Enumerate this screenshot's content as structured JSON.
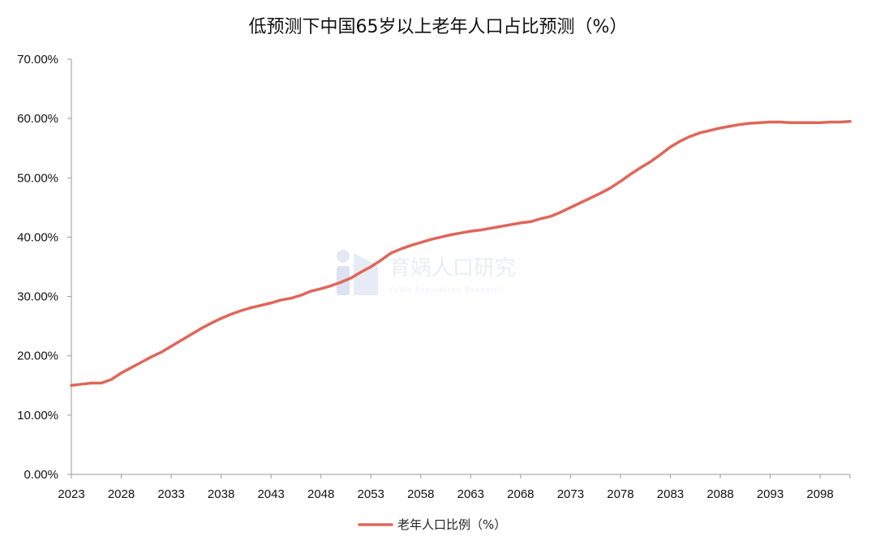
{
  "colors": {
    "series": "#e0665a",
    "axis": "#9a9a9a",
    "watermark": "#dde3ef"
  },
  "watermark": {
    "icon": "brand-logo-icon",
    "text": "育娲人口研究",
    "sub": "YuWa Population Research"
  },
  "chart_data": {
    "type": "line",
    "title": "低预测下中国65岁以上老年人口占比预测（%）",
    "xlabel": "",
    "ylabel": "",
    "xlim": [
      2023,
      2101
    ],
    "ylim": [
      0,
      70
    ],
    "y_ticks": [
      "0.00%",
      "10.00%",
      "20.00%",
      "30.00%",
      "40.00%",
      "50.00%",
      "60.00%",
      "70.00%"
    ],
    "x_ticks": [
      "2023",
      "2028",
      "2033",
      "2038",
      "2043",
      "2048",
      "2053",
      "2058",
      "2063",
      "2068",
      "2073",
      "2078",
      "2083",
      "2088",
      "2093",
      "2098"
    ],
    "grid": false,
    "legend_position": "bottom-center",
    "series": [
      {
        "name": "老年人口比例（%）",
        "x": [
          2023,
          2024,
          2025,
          2026,
          2027,
          2028,
          2029,
          2030,
          2031,
          2032,
          2033,
          2034,
          2035,
          2036,
          2037,
          2038,
          2039,
          2040,
          2041,
          2042,
          2043,
          2044,
          2045,
          2046,
          2047,
          2048,
          2049,
          2050,
          2051,
          2052,
          2053,
          2054,
          2055,
          2056,
          2057,
          2058,
          2059,
          2060,
          2061,
          2062,
          2063,
          2064,
          2065,
          2066,
          2067,
          2068,
          2069,
          2070,
          2071,
          2072,
          2073,
          2074,
          2075,
          2076,
          2077,
          2078,
          2079,
          2080,
          2081,
          2082,
          2083,
          2084,
          2085,
          2086,
          2087,
          2088,
          2089,
          2090,
          2091,
          2092,
          2093,
          2094,
          2095,
          2096,
          2097,
          2098,
          2099,
          2100,
          2101
        ],
        "values": [
          15.0,
          15.2,
          15.4,
          15.4,
          16.0,
          17.1,
          18.0,
          18.9,
          19.8,
          20.6,
          21.6,
          22.6,
          23.6,
          24.6,
          25.5,
          26.3,
          27.0,
          27.6,
          28.1,
          28.5,
          28.9,
          29.4,
          29.7,
          30.2,
          30.9,
          31.3,
          31.8,
          32.4,
          33.1,
          34.1,
          35.0,
          36.1,
          37.3,
          38.0,
          38.6,
          39.1,
          39.6,
          40.0,
          40.4,
          40.7,
          41.0,
          41.2,
          41.5,
          41.8,
          42.1,
          42.4,
          42.6,
          43.1,
          43.5,
          44.2,
          45.0,
          45.8,
          46.6,
          47.4,
          48.3,
          49.4,
          50.6,
          51.7,
          52.7,
          53.9,
          55.2,
          56.2,
          57.0,
          57.6,
          58.0,
          58.4,
          58.7,
          59.0,
          59.2,
          59.3,
          59.4,
          59.4,
          59.3,
          59.3,
          59.3,
          59.3,
          59.4,
          59.4,
          59.5
        ]
      }
    ]
  }
}
